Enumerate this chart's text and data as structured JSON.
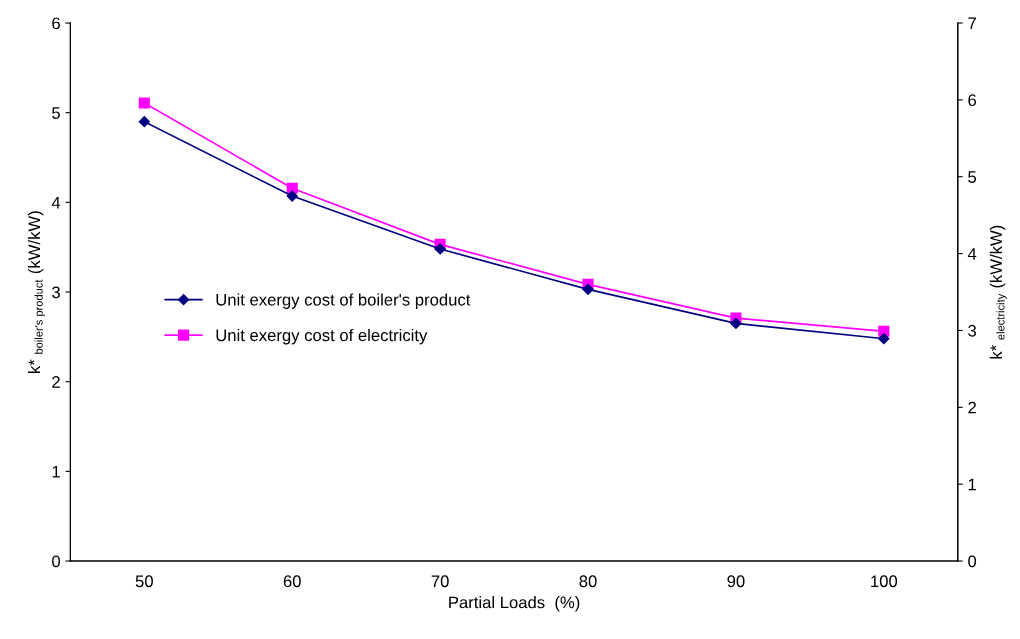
{
  "chart_data": {
    "type": "line",
    "xlabel": "Partial Loads  (%)",
    "ylabel": "k* $_{boiler's product}$ (kW/kW)",
    "y2label": "k* $_{electricity}$ (kW/kW)",
    "categories": [
      "50",
      "60",
      "70",
      "80",
      "90",
      "100"
    ],
    "series": [
      {
        "name": "Unit exergy cost of boiler's product",
        "color": "#000080",
        "marker": "diamond",
        "values": [
          4.9,
          4.07,
          3.48,
          3.03,
          2.65,
          2.48
        ]
      },
      {
        "name": "Unit exergy cost of electricity",
        "color": "#ff00ff",
        "marker": "square",
        "axis": "y2",
        "values": [
          5.96,
          4.85,
          4.12,
          3.6,
          3.16,
          2.99
        ]
      }
    ],
    "ylim": [
      0,
      6
    ],
    "yticks": [
      0,
      1,
      2,
      3,
      4,
      5,
      6
    ],
    "y2lim": [
      0,
      7
    ],
    "y2ticks": [
      0,
      1,
      2,
      3,
      4,
      5,
      6,
      7
    ],
    "grid": false,
    "legend": "center left",
    "line_style": "solid"
  }
}
